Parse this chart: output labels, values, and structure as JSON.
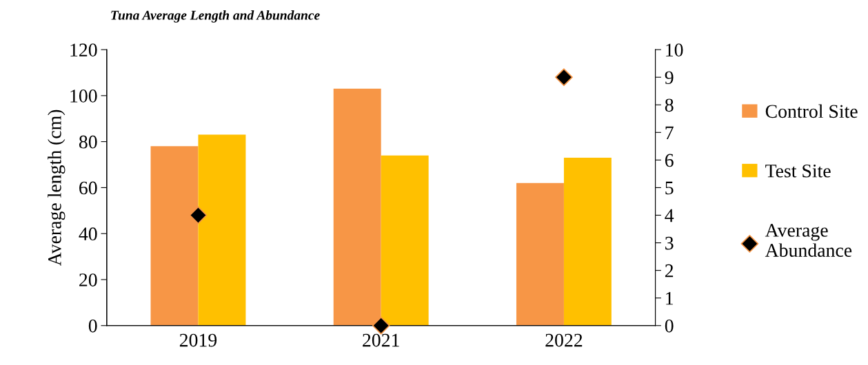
{
  "chart_data": {
    "type": "bar",
    "title": "Tuna Average Length and Abundance",
    "ylabel": "Average length (cm)",
    "categories": [
      "2019",
      "2021",
      "2022"
    ],
    "series": [
      {
        "name": "Control Site",
        "color": "#f79646",
        "values": [
          78,
          103,
          62
        ]
      },
      {
        "name": "Test Site",
        "color": "#ffc000",
        "values": [
          83,
          74,
          73
        ]
      },
      {
        "name": "Average Abundance",
        "type": "scatter",
        "axis": "y2",
        "marker": "diamond",
        "color": "#000000",
        "values": [
          4,
          0,
          9
        ]
      }
    ],
    "ylim": [
      0,
      120
    ],
    "yticks": [
      0,
      20,
      40,
      60,
      80,
      100,
      120
    ],
    "y2lim": [
      0,
      10
    ],
    "y2ticks": [
      0,
      1,
      2,
      3,
      4,
      5,
      6,
      7,
      8,
      9,
      10
    ],
    "grid": false,
    "legend": "right"
  }
}
